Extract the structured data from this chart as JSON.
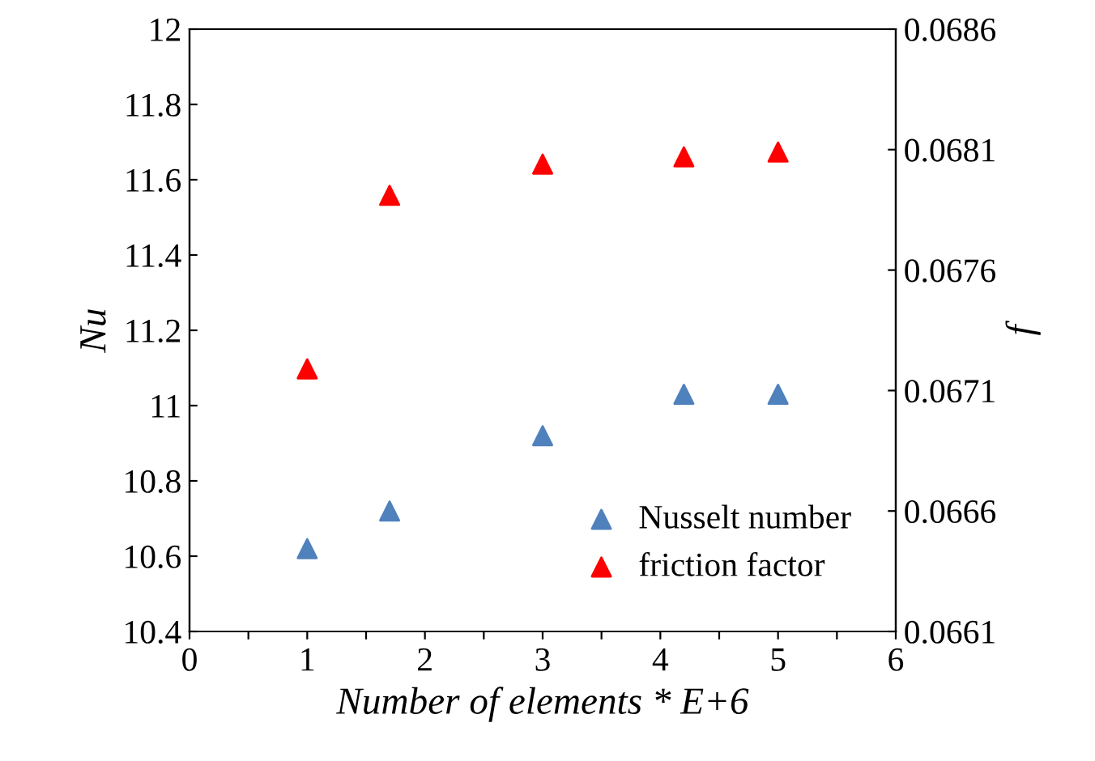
{
  "chart_data": {
    "type": "scatter",
    "xlabel": "Number of elements * E+6",
    "ylabel": "Nu",
    "y2label": "f",
    "xlim": [
      0,
      6
    ],
    "xticks": [
      0,
      {
        "value": 0.5,
        "label": null
      },
      1,
      {
        "value": 1.5,
        "label": null
      },
      2,
      {
        "value": 2.5,
        "label": null
      },
      3,
      {
        "value": 3.5,
        "label": null
      },
      4,
      {
        "value": 4.5,
        "label": null
      },
      5,
      {
        "value": 5.5,
        "label": null
      },
      6
    ],
    "ylim": [
      10.4,
      12
    ],
    "yticks": [
      10.4,
      10.6,
      10.8,
      11,
      11.2,
      11.4,
      11.6,
      11.8,
      12
    ],
    "y2lim": [
      0.0661,
      0.0686
    ],
    "y2ticks": [
      0.0661,
      0.0666,
      0.0671,
      0.0676,
      0.0681,
      0.0686
    ],
    "x": [
      1,
      1.7,
      3,
      4.2,
      5
    ],
    "marker": "triangle",
    "legend": "bottom right",
    "grid": false,
    "series": [
      {
        "name": "Nusselt number",
        "color": "#4f81bd",
        "values": [
          10.62,
          10.72,
          10.92,
          11.03,
          11.03
        ]
      },
      {
        "name": "friction factor",
        "color": "#ff0000",
        "axis": "y2",
        "values": [
          0.06719,
          0.06791,
          0.06804,
          0.06807,
          0.06809
        ]
      }
    ]
  }
}
